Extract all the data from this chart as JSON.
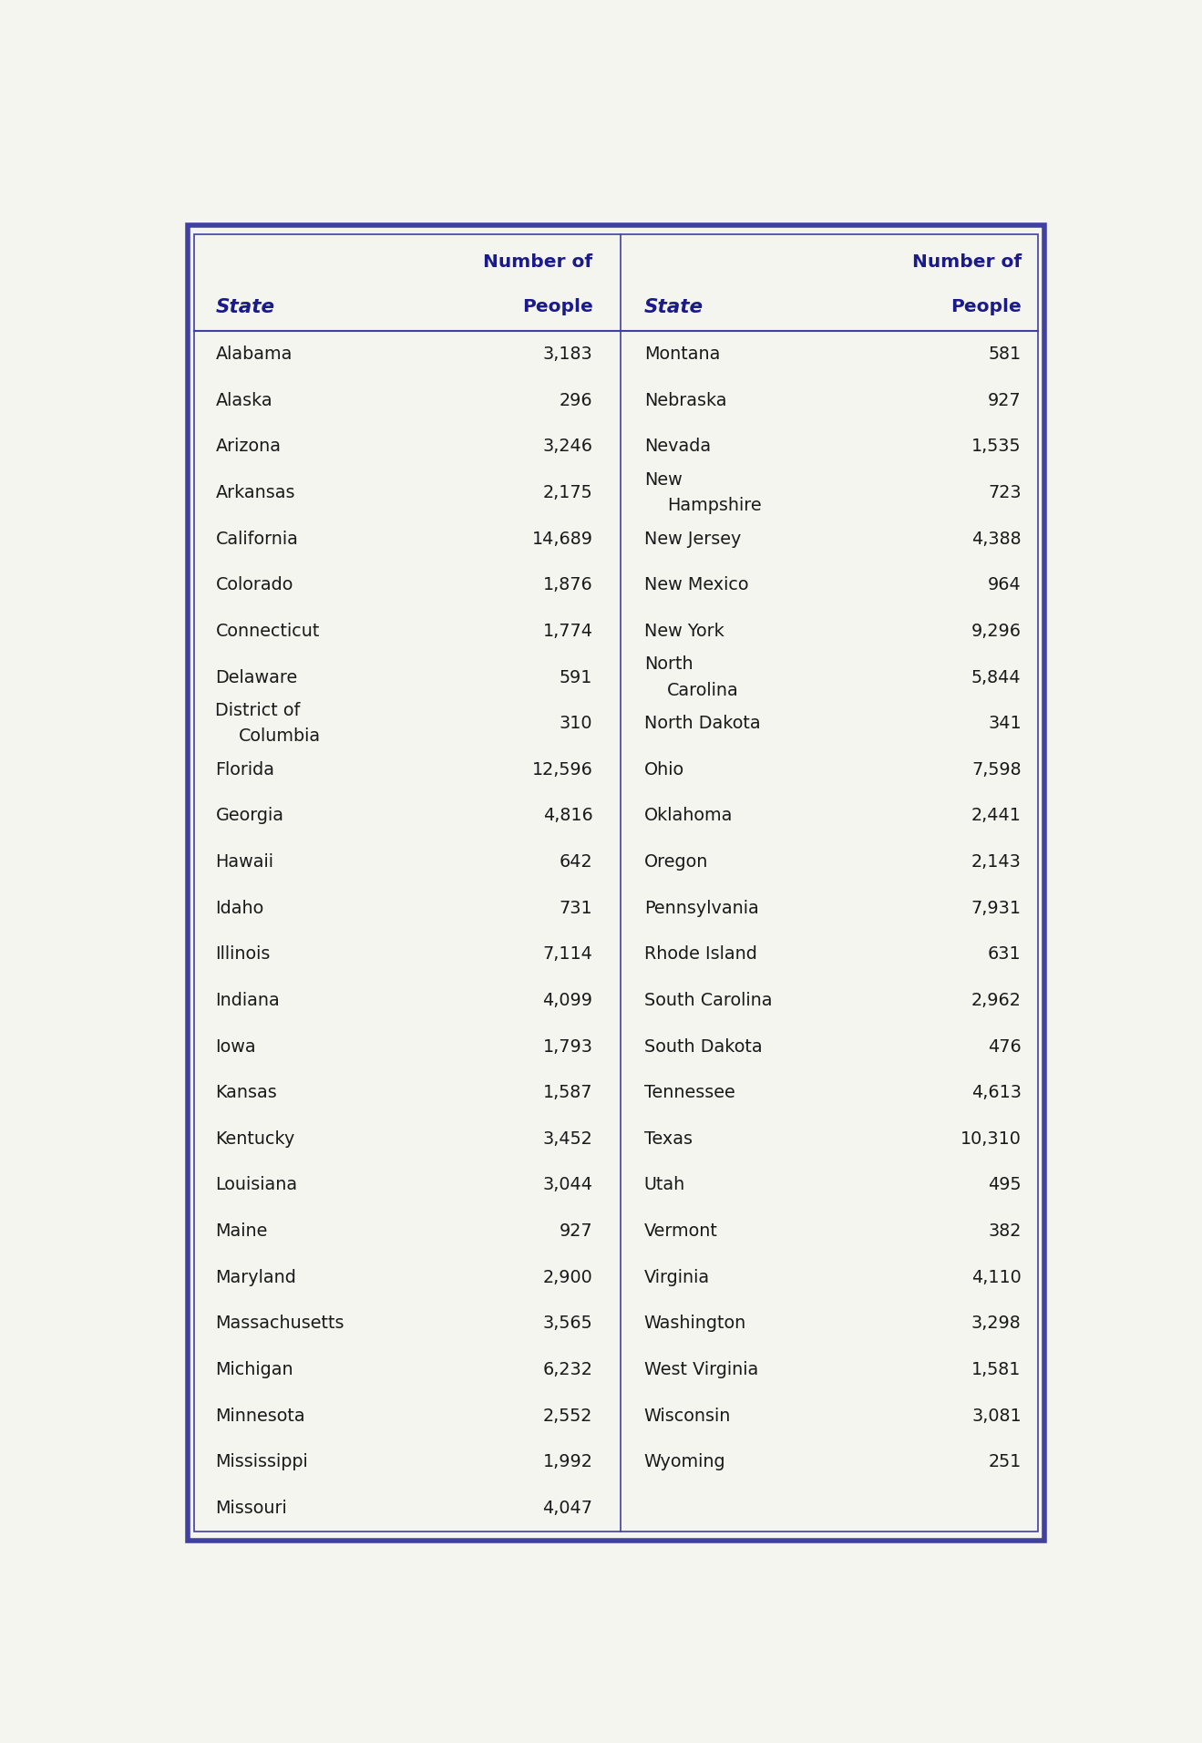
{
  "col1_states": [
    "Alabama",
    "Alaska",
    "Arizona",
    "Arkansas",
    "California",
    "Colorado",
    "Connecticut",
    "Delaware",
    "District of\n   Columbia",
    "Florida",
    "Georgia",
    "Hawaii",
    "Idaho",
    "Illinois",
    "Indiana",
    "Iowa",
    "Kansas",
    "Kentucky",
    "Louisiana",
    "Maine",
    "Maryland",
    "Massachusetts",
    "Michigan",
    "Minnesota",
    "Mississippi",
    "Missouri"
  ],
  "col1_values": [
    "3,183",
    "296",
    "3,246",
    "2,175",
    "14,689",
    "1,876",
    "1,774",
    "591",
    "310",
    "12,596",
    "4,816",
    "642",
    "731",
    "7,114",
    "4,099",
    "1,793",
    "1,587",
    "3,452",
    "3,044",
    "927",
    "2,900",
    "3,565",
    "6,232",
    "2,552",
    "1,992",
    "4,047"
  ],
  "col2_states": [
    "Montana",
    "Nebraska",
    "Nevada",
    "New\n   Hampshire",
    "New Jersey",
    "New Mexico",
    "New York",
    "North\n   Carolina",
    "North Dakota",
    "Ohio",
    "Oklahoma",
    "Oregon",
    "Pennsylvania",
    "Rhode Island",
    "South Carolina",
    "South Dakota",
    "Tennessee",
    "Texas",
    "Utah",
    "Vermont",
    "Virginia",
    "Washington",
    "West Virginia",
    "Wisconsin",
    "Wyoming",
    ""
  ],
  "col2_values": [
    "581",
    "927",
    "1,535",
    "723",
    "4,388",
    "964",
    "9,296",
    "5,844",
    "341",
    "7,598",
    "2,441",
    "2,143",
    "7,931",
    "631",
    "2,962",
    "476",
    "4,613",
    "10,310",
    "495",
    "382",
    "4,110",
    "3,298",
    "1,581",
    "3,081",
    "251",
    ""
  ],
  "border_color": "#4040a0",
  "header_text_color": "#1a1a8a",
  "body_text_color": "#1a1a1a",
  "background_color": "#f5f5f0",
  "figwidth": 13.19,
  "figheight": 19.12,
  "dpi": 100
}
